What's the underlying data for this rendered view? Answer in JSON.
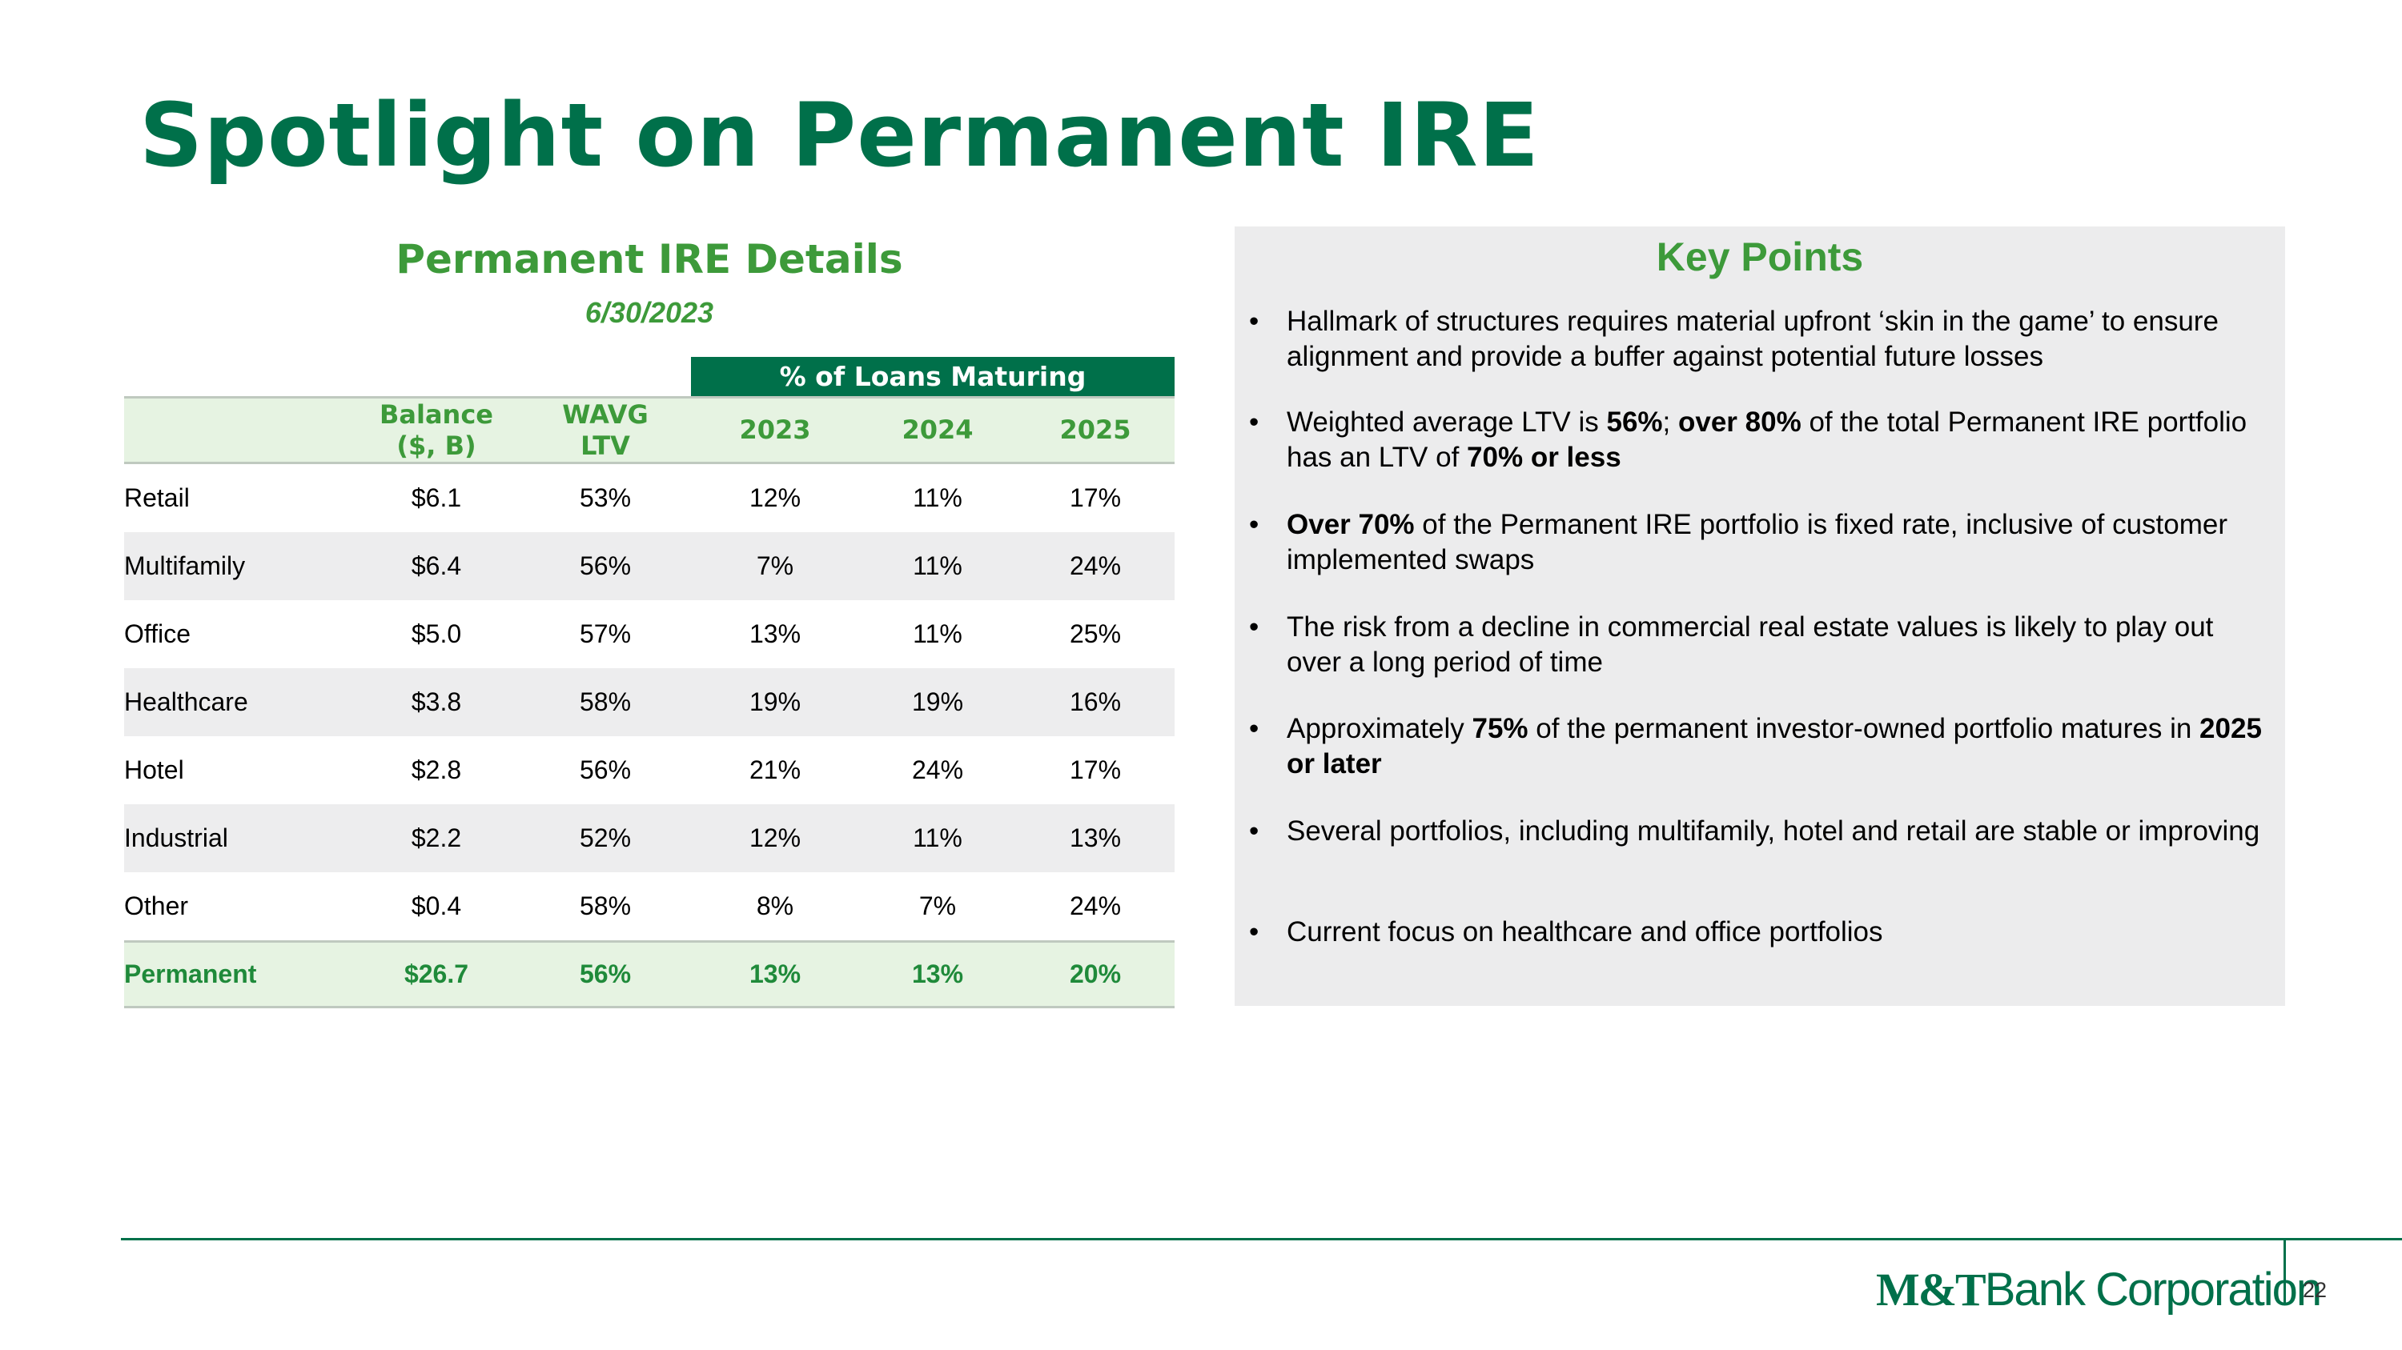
{
  "title": "Spotlight on Permanent IRE",
  "table": {
    "title": "Permanent IRE Details",
    "date": "6/30/2023",
    "group_header": "% of Loans Maturing",
    "columns": [
      "Balance ($, B)",
      "WAVG LTV",
      "2023",
      "2024",
      "2025"
    ],
    "rows": [
      [
        "Retail",
        "$6.1",
        "53%",
        "12%",
        "11%",
        "17%"
      ],
      [
        "Multifamily",
        "$6.4",
        "56%",
        "7%",
        "11%",
        "24%"
      ],
      [
        "Office",
        "$5.0",
        "57%",
        "13%",
        "11%",
        "25%"
      ],
      [
        "Healthcare",
        "$3.8",
        "58%",
        "19%",
        "19%",
        "16%"
      ],
      [
        "Hotel",
        "$2.8",
        "56%",
        "21%",
        "24%",
        "17%"
      ],
      [
        "Industrial",
        "$2.2",
        "52%",
        "12%",
        "11%",
        "13%"
      ],
      [
        "Other",
        "$0.4",
        "58%",
        "8%",
        "7%",
        "24%"
      ]
    ],
    "total": [
      "Permanent",
      "$26.7",
      "56%",
      "13%",
      "13%",
      "20%"
    ]
  },
  "key_points": {
    "title": "Key Points",
    "bullets": [
      [
        {
          "text": "Hallmark of structures requires material upfront ‘skin in the game’ to ensure alignment and provide a buffer against potential future losses",
          "bold": false
        }
      ],
      [
        {
          "text": "Weighted average LTV is ",
          "bold": false
        },
        {
          "text": "56%",
          "bold": true
        },
        {
          "text": "; ",
          "bold": false
        },
        {
          "text": "over 80%",
          "bold": true
        },
        {
          "text": " of the total Permanent IRE portfolio has an LTV of ",
          "bold": false
        },
        {
          "text": "70% or less",
          "bold": true
        }
      ],
      [
        {
          "text": "Over 70%",
          "bold": true
        },
        {
          "text": " of the Permanent IRE portfolio is fixed rate, inclusive of customer implemented swaps",
          "bold": false
        }
      ],
      [
        {
          "text": "The risk from a decline in commercial real estate values is likely to play out over a long period of time",
          "bold": false
        }
      ],
      [
        {
          "text": "Approximately ",
          "bold": false
        },
        {
          "text": "75%",
          "bold": true
        },
        {
          "text": " of the permanent investor-owned portfolio matures in ",
          "bold": false
        },
        {
          "text": "2025 or later",
          "bold": true
        }
      ],
      [
        {
          "text": "Several portfolios, including multifamily, hotel and retail are stable or improving",
          "bold": false
        }
      ],
      [
        {
          "text": "Current focus on healthcare and office portfolios",
          "bold": false
        }
      ]
    ]
  },
  "footer": {
    "logo_mark": "M&T",
    "logo_name": "Bank Corporation",
    "page_number": "22"
  }
}
